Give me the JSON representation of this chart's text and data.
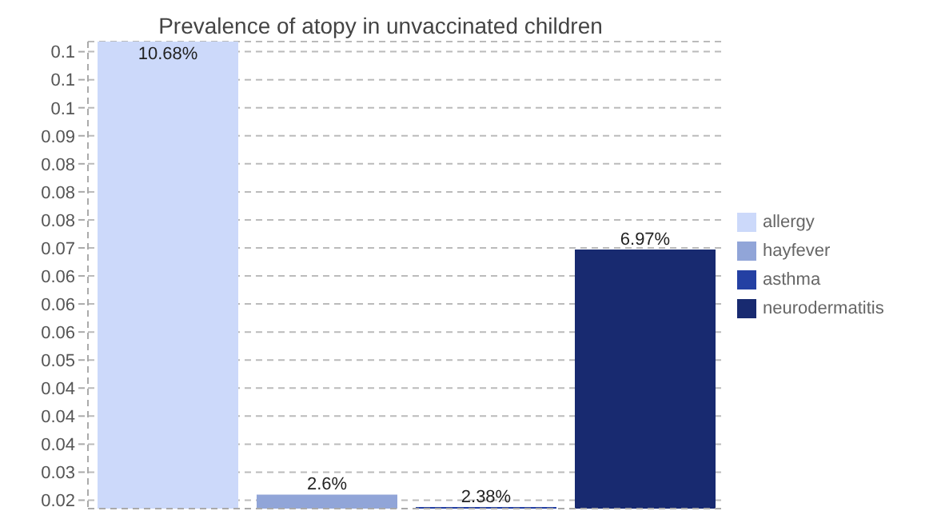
{
  "chart_data": {
    "type": "bar",
    "title": "Prevalence of atopy in unvaccinated children",
    "categories": [
      null,
      null,
      null,
      null
    ],
    "stacked": true,
    "series": [
      {
        "name": "allergy",
        "color": "#ccd9fa",
        "values": [
          0.1068,
          null,
          null,
          null
        ],
        "value_labels": [
          "10.68%",
          null,
          null,
          null
        ]
      },
      {
        "name": "hayfever",
        "color": "#91a5d8",
        "values": [
          null,
          0.026,
          null,
          null
        ],
        "value_labels": [
          null,
          "2.6%",
          null,
          null
        ]
      },
      {
        "name": "asthma",
        "color": "#2440a3",
        "values": [
          null,
          null,
          0.0238,
          null
        ],
        "value_labels": [
          null,
          null,
          "2.38%",
          null
        ]
      },
      {
        "name": "neurodermatitis",
        "color": "#182a70",
        "values": [
          null,
          null,
          null,
          0.0697
        ],
        "value_labels": [
          null,
          null,
          null,
          "6.97%"
        ]
      }
    ],
    "ylim": [
      0.0235,
      0.1068
    ],
    "yticks": [
      {
        "value": 0.025,
        "label": "0.02"
      },
      {
        "value": 0.03,
        "label": "0.03"
      },
      {
        "value": 0.035,
        "label": "0.04"
      },
      {
        "value": 0.04,
        "label": "0.04"
      },
      {
        "value": 0.045,
        "label": "0.04"
      },
      {
        "value": 0.05,
        "label": "0.05"
      },
      {
        "value": 0.055,
        "label": "0.06"
      },
      {
        "value": 0.06,
        "label": "0.06"
      },
      {
        "value": 0.065,
        "label": "0.06"
      },
      {
        "value": 0.07,
        "label": "0.07"
      },
      {
        "value": 0.075,
        "label": "0.08"
      },
      {
        "value": 0.08,
        "label": "0.08"
      },
      {
        "value": 0.085,
        "label": "0.08"
      },
      {
        "value": 0.09,
        "label": "0.09"
      },
      {
        "value": 0.095,
        "label": "0.1"
      },
      {
        "value": 0.1,
        "label": "0.1"
      },
      {
        "value": 0.105,
        "label": "0.1"
      }
    ],
    "grid": "y",
    "legend": "right",
    "tick_labels": "y"
  }
}
